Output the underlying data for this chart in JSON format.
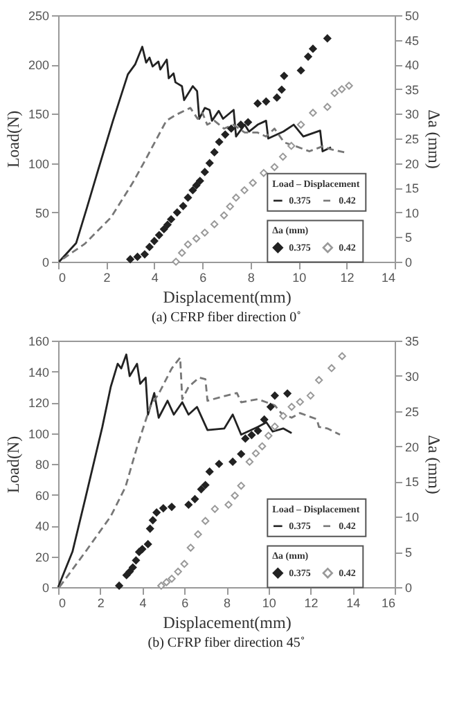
{
  "chart_data": [
    {
      "type": "line",
      "title": "(a) CFRP fiber direction 0˚",
      "xlabel": "Displacement(mm)",
      "ylabel": "Load(N)",
      "y2label": "Δa (mm)",
      "xlim": [
        0,
        14
      ],
      "xticks": [
        0,
        2,
        4,
        6,
        8,
        10,
        12,
        14
      ],
      "ylim": [
        0,
        250
      ],
      "yticks": [
        0,
        50,
        100,
        150,
        200,
        250
      ],
      "y2lim": [
        0,
        50
      ],
      "y2ticks": [
        0,
        5,
        10,
        15,
        20,
        25,
        30,
        35,
        40,
        45,
        50
      ],
      "grid": false,
      "legend": "bottom right",
      "annotations": [
        "Load – Displacement",
        "Δa (mm)"
      ],
      "series": [
        {
          "name": "0.375",
          "line_style": "solid",
          "marker": "none",
          "color": "#222222",
          "x": [
            0.04,
            0.75,
            1.2,
            1.65,
            2.28,
            2.9,
            3.2,
            3.5,
            3.66,
            3.8,
            3.93,
            4.17,
            4.25,
            4.52,
            4.6,
            4.8,
            4.88,
            5.15,
            5.24,
            5.6,
            5.78,
            5.87,
            6.1,
            6.3,
            6.4,
            6.68,
            6.86,
            7.3,
            7.4,
            7.76,
            7.94,
            8.3,
            8.65,
            8.74,
            9.37,
            9.8,
            10.2,
            10.9,
            11.0,
            11.35
          ],
          "values": [
            0,
            19,
            55,
            92,
            143,
            190,
            200,
            218,
            202,
            207,
            198,
            203,
            195,
            205,
            186,
            191,
            182,
            178,
            164,
            178,
            173,
            145,
            156,
            154,
            143,
            153,
            145,
            154,
            127,
            139,
            132,
            139,
            143,
            125,
            132,
            139,
            127,
            133,
            112,
            116
          ]
        },
        {
          "name": "0.42",
          "line_style": "dashed",
          "marker": "none",
          "color": "#777777",
          "x": [
            0.2,
            1.1,
            2.2,
            3.1,
            3.6,
            4.5,
            4.9,
            5.5,
            5.8,
            6.0,
            6.2,
            6.5,
            6.9,
            7.3,
            7.76,
            8.3,
            8.65,
            9.0,
            9.4,
            9.9,
            10.45,
            11.0,
            11.35,
            11.9
          ],
          "values": [
            3,
            18,
            45,
            80,
            102,
            143,
            149,
            156,
            145,
            151,
            139,
            143,
            135,
            139,
            131,
            131,
            127,
            135,
            121,
            117,
            112,
            117,
            114,
            111
          ]
        },
        {
          "name": "0.375",
          "type": "scatter",
          "axis": "y2",
          "marker": "diamond",
          "color": "#222222",
          "x": [
            3.0,
            3.3,
            3.6,
            3.8,
            4.0,
            4.2,
            4.4,
            4.55,
            4.7,
            4.95,
            5.2,
            5.4,
            5.6,
            5.75,
            5.9,
            6.1,
            6.3,
            6.5,
            6.7,
            6.95,
            7.2,
            7.6,
            7.9,
            8.3,
            8.65,
            9.1,
            9.3,
            9.4,
            10.1,
            10.4,
            10.6,
            11.2
          ],
          "values": [
            0.5,
            1.0,
            1.5,
            3.0,
            4.2,
            5.4,
            6.6,
            7.5,
            8.6,
            10.0,
            11.3,
            13.0,
            14.5,
            15.5,
            16.4,
            18.2,
            20,
            22.2,
            24.3,
            25.8,
            27,
            27.8,
            28.3,
            32.1,
            32.5,
            33.3,
            34.9,
            37.7,
            38.8,
            41.6,
            43.2,
            45.3
          ]
        },
        {
          "name": "0.42",
          "type": "scatter",
          "axis": "y2",
          "marker": "diamond",
          "color": "#999999",
          "x": [
            4.9,
            5.15,
            5.4,
            5.75,
            6.1,
            6.5,
            6.9,
            7.15,
            7.4,
            7.75,
            8.1,
            8.55,
            9.0,
            9.35,
            9.7,
            10.1,
            10.6,
            11.2,
            11.5,
            11.8,
            12.1
          ],
          "values": [
            0,
            1.8,
            3.5,
            4.7,
            5.9,
            7.6,
            9.4,
            11.2,
            13,
            14.5,
            16,
            18,
            19.2,
            21.3,
            23.5,
            27.8,
            30.2,
            31.4,
            34.2,
            35,
            35.7
          ]
        }
      ]
    },
    {
      "type": "line",
      "title": "(b) CFRP fiber direction 45˚",
      "xlabel": "Displacement(mm)",
      "ylabel": "Load(N)",
      "y2label": "Δa (mm)",
      "xlim": [
        0,
        16
      ],
      "xticks": [
        0,
        2,
        4,
        6,
        8,
        10,
        12,
        14,
        16
      ],
      "ylim": [
        0,
        160
      ],
      "yticks": [
        0,
        20,
        40,
        60,
        80,
        100,
        120,
        140,
        160
      ],
      "y2lim": [
        0,
        35
      ],
      "y2ticks": [
        0,
        5,
        10,
        15,
        20,
        25,
        30,
        35
      ],
      "grid": false,
      "legend": "bottom right",
      "annotations": [
        "Load – Displacement",
        "Δa (mm)"
      ],
      "series": [
        {
          "name": "0.375",
          "line_style": "solid",
          "marker": "none",
          "color": "#222222",
          "x": [
            0,
            0.68,
            1.3,
            2.1,
            2.5,
            2.83,
            3.0,
            3.24,
            3.4,
            3.75,
            3.9,
            4.16,
            4.27,
            4.57,
            4.78,
            5.2,
            5.5,
            5.9,
            6.2,
            6.6,
            7.1,
            7.9,
            8.3,
            8.7,
            9.5,
            9.9,
            10.2,
            10.7,
            11.1
          ],
          "values": [
            0,
            23,
            58,
            104,
            130,
            145,
            142,
            151,
            137,
            145,
            132,
            136,
            112,
            126,
            110,
            121,
            112,
            120,
            112,
            117,
            102,
            103,
            112,
            99,
            104,
            107,
            101,
            103,
            100
          ]
        },
        {
          "name": "0.42",
          "line_style": "dashed",
          "marker": "none",
          "color": "#777777",
          "x": [
            0.06,
            1.3,
            2.5,
            3.2,
            3.75,
            4.37,
            4.8,
            5.4,
            5.8,
            5.9,
            6.2,
            6.7,
            7.0,
            7.1,
            7.9,
            8.5,
            8.7,
            9.5,
            10.3,
            10.6,
            11.1,
            11.5,
            12.3,
            12.4,
            12.8,
            13.4
          ],
          "values": [
            0,
            23,
            46,
            65,
            91,
            117,
            126,
            142,
            149,
            122,
            130,
            136,
            135,
            121,
            124,
            126,
            120,
            122,
            118,
            113,
            110,
            113,
            109,
            104,
            103,
            99
          ]
        },
        {
          "name": "0.375",
          "type": "scatter",
          "axis": "y2",
          "marker": "diamond",
          "color": "#222222",
          "x": [
            2.9,
            3.25,
            3.4,
            3.55,
            3.7,
            3.85,
            4.0,
            4.27,
            4.37,
            4.5,
            4.68,
            5.0,
            5.4,
            6.2,
            6.5,
            6.8,
            7.0,
            7.2,
            7.65,
            8.3,
            8.7,
            8.9,
            9.2,
            9.5,
            9.8,
            10.1,
            10.3,
            10.9
          ],
          "values": [
            0.2,
            1.7,
            2.2,
            2.8,
            3.8,
            5,
            5.4,
            6.1,
            8.3,
            9.5,
            10.6,
            11.2,
            11.4,
            11.7,
            12.5,
            13.9,
            14.5,
            16.4,
            17.5,
            17.8,
            18.9,
            21.1,
            21.6,
            22.2,
            23.8,
            25.6,
            27.2,
            27.5
          ]
        },
        {
          "name": "0.42",
          "type": "scatter",
          "axis": "y2",
          "marker": "diamond",
          "color": "#999999",
          "x": [
            4.9,
            5.15,
            5.4,
            5.7,
            6.0,
            6.3,
            6.65,
            7.0,
            7.45,
            8.1,
            8.4,
            8.7,
            9.1,
            9.4,
            9.7,
            10.0,
            10.3,
            10.7,
            11.1,
            11.5,
            12.0,
            12.4,
            13.0,
            13.5
          ],
          "values": [
            0.2,
            0.7,
            1.2,
            2.2,
            3.3,
            5.6,
            7.5,
            9.4,
            11.1,
            11.7,
            13,
            14.4,
            17.8,
            19,
            20,
            21.5,
            22.8,
            24.3,
            25.6,
            26.3,
            27.2,
            29.4,
            31.1,
            32.8
          ]
        }
      ]
    }
  ]
}
